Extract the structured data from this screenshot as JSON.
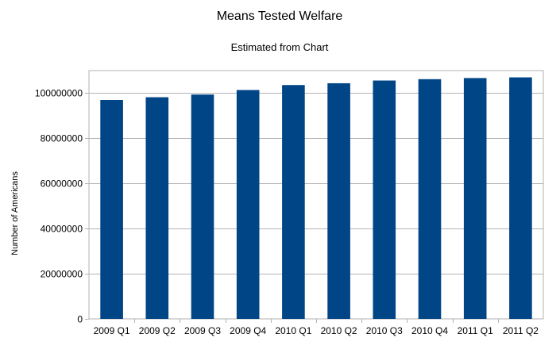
{
  "chart_data": {
    "type": "bar",
    "title": "Means Tested Welfare",
    "subtitle": "Estimated from Chart",
    "ylabel": "Number of Americans",
    "xlabel": "",
    "categories": [
      "2009 Q1",
      "2009 Q2",
      "2009 Q3",
      "2009 Q4",
      "2010 Q1",
      "2010 Q2",
      "2010 Q3",
      "2010 Q4",
      "2011 Q1",
      "2011 Q2"
    ],
    "values": [
      97000000,
      98200000,
      99400000,
      101400000,
      103600000,
      104400000,
      105600000,
      106200000,
      106700000,
      107000000
    ],
    "ylim": [
      0,
      110000000
    ],
    "yticks": [
      0,
      20000000,
      40000000,
      60000000,
      80000000,
      100000000
    ],
    "ytick_labels": [
      "0",
      "20000000",
      "40000000",
      "60000000",
      "80000000",
      "100000000"
    ],
    "grid": "horizontal",
    "legend": "none",
    "bar_color": "#004586",
    "grid_color": "#b3b3b3",
    "axis_color": "#b3b3b3"
  }
}
